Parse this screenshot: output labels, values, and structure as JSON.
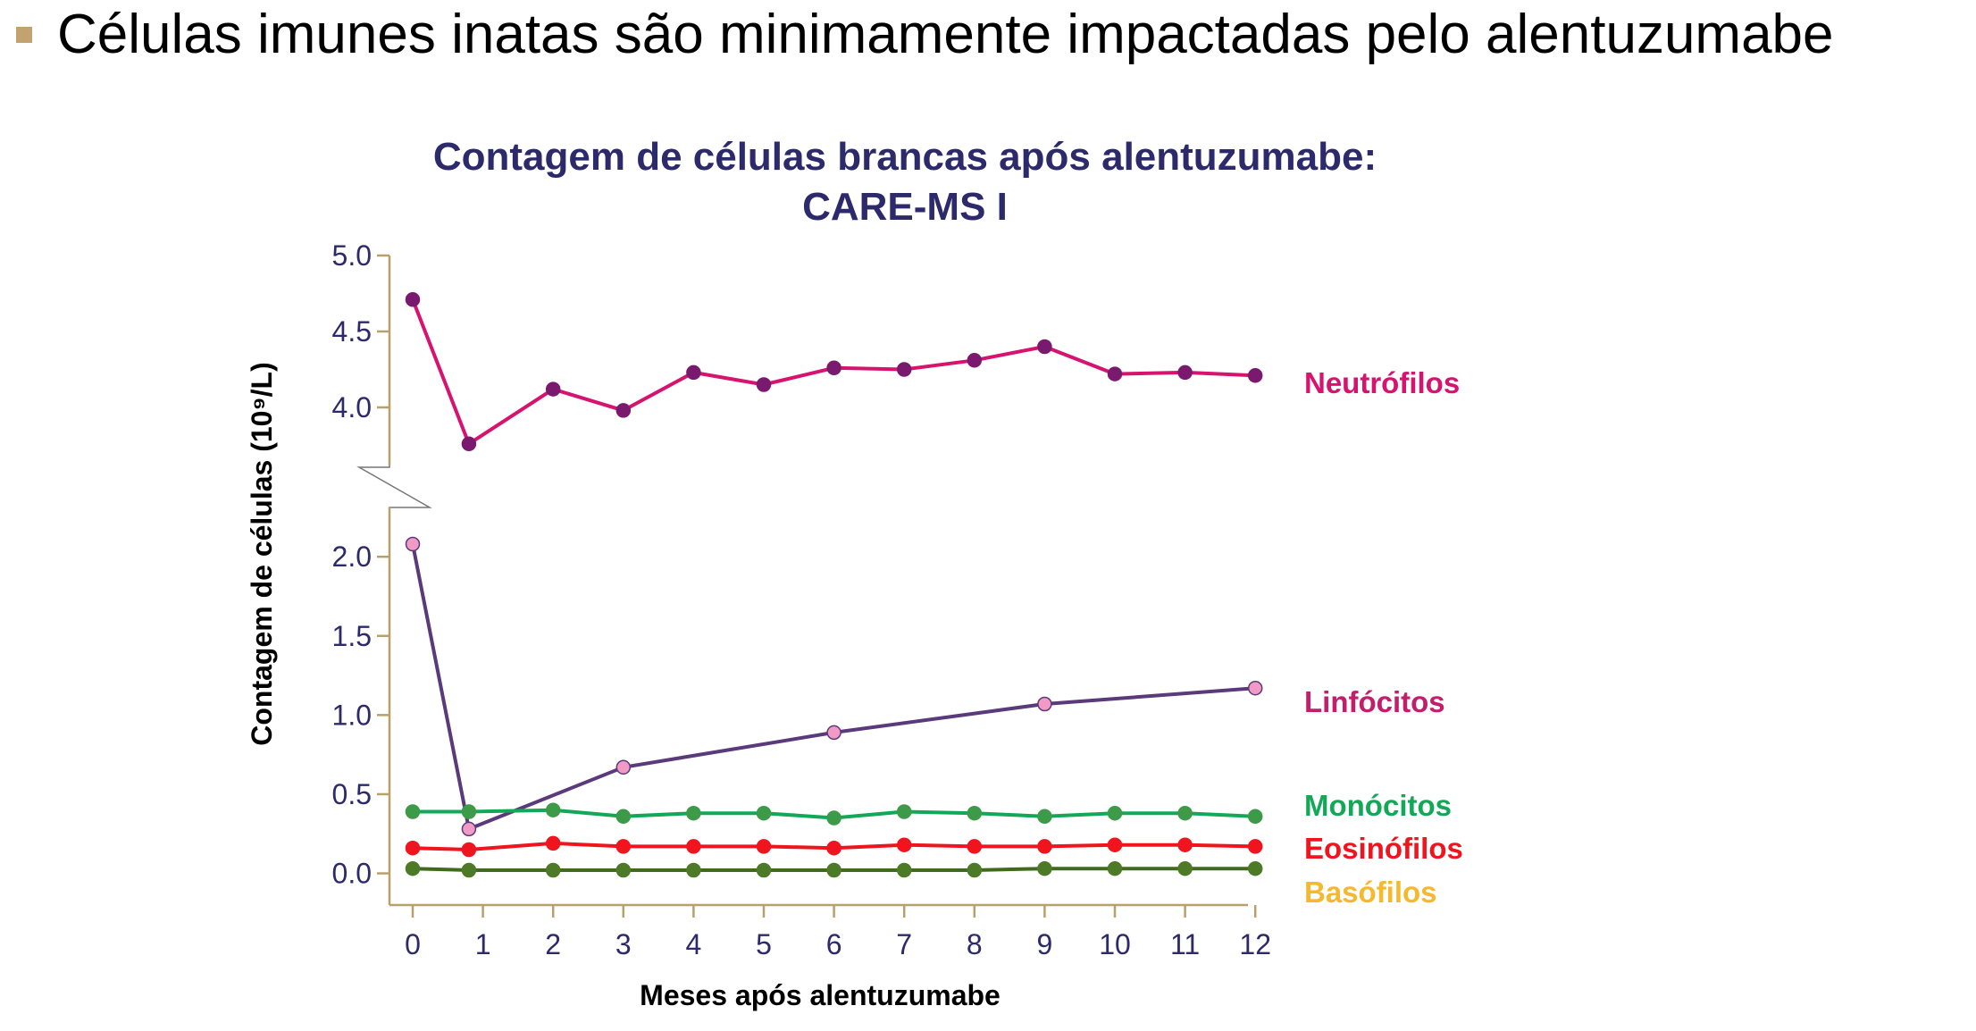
{
  "slide": {
    "title": "Células imunes inatas são minimamente impactadas pelo alentuzumabe",
    "bullet_color": "#c2a36f"
  },
  "colors": {
    "title": "#2d2a6b",
    "axis": "#b8a06a",
    "tick_text": "#2d2a6b"
  },
  "chart_data": {
    "type": "line",
    "title_line1": "Contagem de células brancas após alentuzumabe:",
    "title_line2": "CARE-MS I",
    "xlabel": "Meses após alentuzumabe",
    "ylabel": "Contagem de células (10⁹/L)",
    "x_ticks": [
      0,
      1,
      2,
      3,
      4,
      5,
      6,
      7,
      8,
      9,
      10,
      11,
      12
    ],
    "x_tick_labels": [
      "0",
      "1",
      "2",
      "3",
      "4",
      "5",
      "6",
      "7",
      "8",
      "9",
      "10",
      "11",
      "12"
    ],
    "y_ticks_upper": [
      4.0,
      4.5,
      5.0
    ],
    "y_tick_labels_upper": [
      "4.0",
      "4.5",
      "5.0"
    ],
    "y_ticks_lower": [
      0.0,
      0.5,
      1.0,
      1.5,
      2.0
    ],
    "y_tick_labels_lower": [
      "0.0",
      "0.5",
      "1.0",
      "1.5",
      "2.0"
    ],
    "ylim_upper": [
      3.6,
      5.0
    ],
    "ylim_lower": [
      -0.2,
      2.3
    ],
    "axis_break": true,
    "series": [
      {
        "name": "Neutrófilos",
        "panel": "upper",
        "line_color": "#d6136e",
        "marker_color": "#7a1a6e",
        "label_color": "#d6136e",
        "x": [
          0,
          0.8,
          2,
          3,
          4,
          5,
          6,
          7,
          8,
          9,
          10,
          11,
          12
        ],
        "y": [
          4.71,
          3.76,
          4.12,
          3.98,
          4.23,
          4.15,
          4.26,
          4.25,
          4.31,
          4.4,
          4.22,
          4.23,
          4.21
        ]
      },
      {
        "name": "Linfócitos",
        "panel": "lower",
        "line_color": "#5a3a7a",
        "marker_color": "#f29ac6",
        "label_color": "#c21e6b",
        "x": [
          0,
          0.8,
          3,
          6,
          9,
          12
        ],
        "y": [
          2.08,
          0.28,
          0.67,
          0.89,
          1.07,
          1.17
        ]
      },
      {
        "name": "Monócitos",
        "panel": "lower",
        "line_color": "#13a858",
        "marker_color": "#3d9a48",
        "label_color": "#13a858",
        "x": [
          0,
          0.8,
          2,
          3,
          4,
          5,
          6,
          7,
          8,
          9,
          10,
          11,
          12
        ],
        "y": [
          0.39,
          0.39,
          0.4,
          0.36,
          0.38,
          0.38,
          0.35,
          0.39,
          0.38,
          0.36,
          0.38,
          0.38,
          0.36
        ]
      },
      {
        "name": "Eosinófilos",
        "panel": "lower",
        "line_color": "#f0141e",
        "marker_color": "#f0141e",
        "label_color": "#f0141e",
        "x": [
          0,
          0.8,
          2,
          3,
          4,
          5,
          6,
          7,
          8,
          9,
          10,
          11,
          12
        ],
        "y": [
          0.16,
          0.15,
          0.19,
          0.17,
          0.17,
          0.17,
          0.16,
          0.18,
          0.17,
          0.17,
          0.18,
          0.18,
          0.17
        ]
      },
      {
        "name": "Basófilos",
        "panel": "lower",
        "line_color": "#3f6a1f",
        "marker_color": "#4c7a26",
        "label_color": "#f5b82e",
        "x": [
          0,
          0.8,
          2,
          3,
          4,
          5,
          6,
          7,
          8,
          9,
          10,
          11,
          12
        ],
        "y": [
          0.03,
          0.02,
          0.02,
          0.02,
          0.02,
          0.02,
          0.02,
          0.02,
          0.02,
          0.03,
          0.03,
          0.03,
          0.03
        ]
      }
    ]
  }
}
